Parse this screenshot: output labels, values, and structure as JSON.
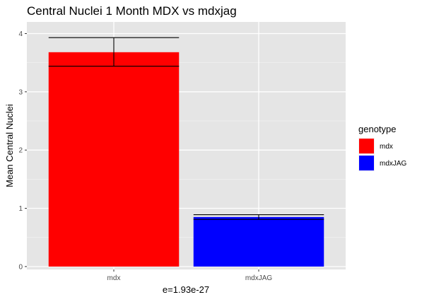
{
  "chart_data": {
    "type": "bar",
    "title": "Central Nuclei 1 Month MDX vs mdxjag",
    "xlabel": "e=1.93e-27",
    "ylabel": "Mean Central Nuclei",
    "categories": [
      "mdx",
      "mdxJAG"
    ],
    "values": [
      3.68,
      0.85
    ],
    "error_bars": [
      {
        "lower": 3.44,
        "upper": 3.93
      },
      {
        "lower": 0.81,
        "upper": 0.89
      }
    ],
    "ylim": [
      -0.05,
      4.2
    ],
    "yticks": [
      0,
      1,
      2,
      3,
      4
    ],
    "grid": true,
    "colors": [
      "#ff0000",
      "#0000ff"
    ],
    "background": "#e5e5e5",
    "legend": {
      "title": "genotype",
      "entries": [
        "mdx",
        "mdxJAG"
      ],
      "position": "right"
    }
  }
}
